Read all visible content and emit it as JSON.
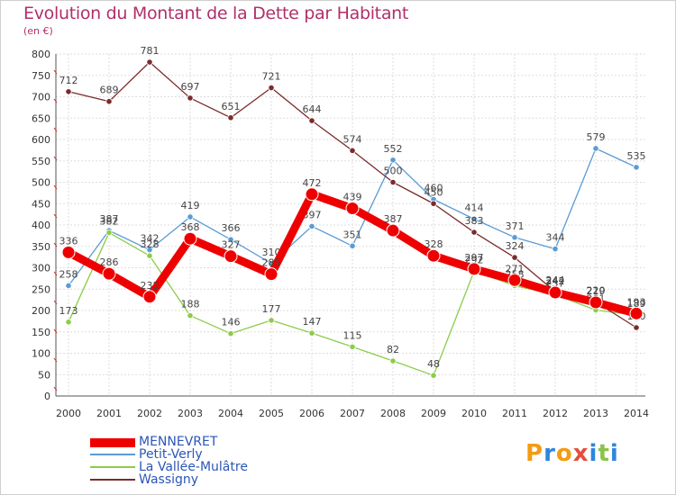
{
  "chart_data": {
    "type": "line",
    "title": "Evolution du Montant de la Dette par Habitant",
    "subtitle": "(en €)",
    "x": [
      "2000",
      "2001",
      "2002",
      "2003",
      "2004",
      "2005",
      "2006",
      "2007",
      "2008",
      "2009",
      "2010",
      "2011",
      "2012",
      "2013",
      "2014"
    ],
    "ylim": [
      0,
      800
    ],
    "yticks": [
      0,
      50,
      100,
      150,
      200,
      250,
      300,
      350,
      400,
      450,
      500,
      550,
      600,
      650,
      700,
      750,
      800
    ],
    "grid": true,
    "legend_position": "bottom-left",
    "series": [
      {
        "name": "MENNEVRET",
        "color": "#ee0000",
        "values": [
          336,
          286,
          232,
          368,
          327,
          285,
          472,
          439,
          387,
          328,
          297,
          271,
          242,
          219,
          193
        ]
      },
      {
        "name": "Petit-Verly",
        "color": "#5b9bd5",
        "values": [
          258,
          387,
          342,
          419,
          366,
          310,
          397,
          351,
          552,
          460,
          414,
          371,
          344,
          579,
          535
        ]
      },
      {
        "name": "La Vallée-Mulâtre",
        "color": "#8ccc4a",
        "values": [
          173,
          382,
          328,
          188,
          146,
          177,
          147,
          115,
          82,
          48,
          292,
          258,
          237,
          201,
          189
        ]
      },
      {
        "name": "Wassigny",
        "color": "#7a2b2b",
        "values": [
          712,
          689,
          781,
          697,
          651,
          721,
          644,
          574,
          500,
          450,
          383,
          324,
          244,
          220,
          160
        ]
      }
    ]
  },
  "logo": {
    "text": "Proxiti",
    "letters": [
      "P",
      "r",
      "o",
      "x",
      "i",
      "t",
      "i"
    ],
    "colors": [
      "#f39c12",
      "#2e86de",
      "#f39c12",
      "#e74c3c",
      "#2e86de",
      "#8bc34a",
      "#2e86de"
    ]
  }
}
